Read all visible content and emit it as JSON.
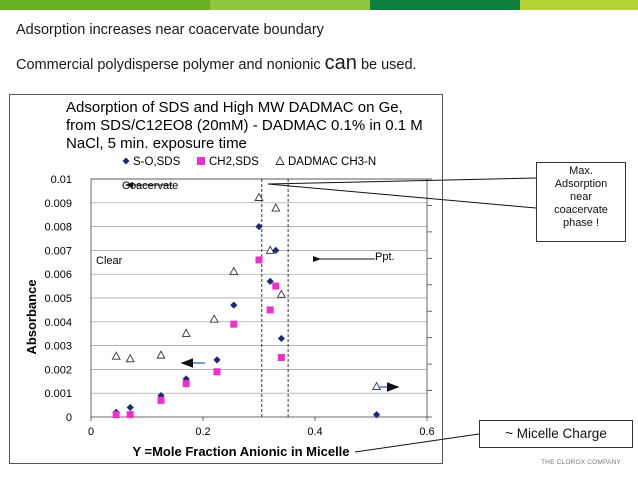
{
  "slide": {
    "headline1": "Adsorption increases near coacervate boundary",
    "headline2_pre": "Commercial polydisperse polymer and nonionic ",
    "headline2_big": "can",
    "headline2_post": " be used.",
    "footer_logo": "THE CLOROX COMPANY",
    "top_bar_colors": [
      "#6ab023",
      "#8dc63f",
      "#0f7f3f",
      "#b5d334"
    ]
  },
  "callouts": {
    "max_adsorption": [
      "Max.",
      "Adsorption",
      "near",
      "coacervate",
      "phase !"
    ],
    "micelle_charge": "~ Micelle Charge"
  },
  "chart_data": {
    "type": "scatter",
    "title_lines": [
      "Adsorption of SDS and High MW DADMAC on Ge,",
      "from SDS/C12EO8  (20mM) - DADMAC 0.1% in 0.1 M",
      "NaCl, 5 min. exposure time"
    ],
    "xlabel": "Y =Mole Fraction Anionic in Micelle",
    "ylabel": "Absorbance",
    "xlim": [
      0,
      0.6
    ],
    "ylim": [
      0,
      0.01
    ],
    "y2lim": [
      0,
      0.00045
    ],
    "x_ticks": [
      "0",
      "0.2",
      "0.4",
      "0.6"
    ],
    "y_ticks": [
      "0",
      "0.001",
      "0.002",
      "0.003",
      "0.004",
      "0.005",
      "0.006",
      "0.007",
      "0.008",
      "0.009",
      "0.01"
    ],
    "y2_ticks": [
      "0",
      "0.00005",
      "0.0001",
      "0.00015",
      "0.0002",
      "0.00025",
      "0.0003",
      "0.00035",
      "0.0004",
      "0.00045"
    ],
    "grid": "horizontal",
    "legend_position": "top",
    "series": [
      {
        "name": "S-O,SDS",
        "marker": "diamond",
        "color": "#1f2a7a",
        "axis": "left",
        "points": [
          [
            0.045,
            0.0002
          ],
          [
            0.07,
            0.0004
          ],
          [
            0.125,
            0.0009
          ],
          [
            0.17,
            0.0016
          ],
          [
            0.225,
            0.0024
          ],
          [
            0.255,
            0.0047
          ],
          [
            0.3,
            0.008
          ],
          [
            0.32,
            0.0057
          ],
          [
            0.33,
            0.007
          ],
          [
            0.34,
            0.0033
          ],
          [
            0.51,
            0.0001
          ]
        ]
      },
      {
        "name": "CH2,SDS",
        "marker": "square",
        "color": "#ee2fcb",
        "axis": "left",
        "points": [
          [
            0.045,
            0.0001
          ],
          [
            0.07,
            0.0001
          ],
          [
            0.125,
            0.0007
          ],
          [
            0.17,
            0.0014
          ],
          [
            0.225,
            0.0019
          ],
          [
            0.255,
            0.0039
          ],
          [
            0.3,
            0.0066
          ],
          [
            0.32,
            0.0045
          ],
          [
            0.33,
            0.0055
          ],
          [
            0.34,
            0.0025
          ]
        ]
      },
      {
        "name": "DADMAC CH3-N",
        "marker": "triangle",
        "color": "#333333",
        "axis": "right",
        "points": [
          [
            0.045,
            0.000115
          ],
          [
            0.07,
            0.00011
          ],
          [
            0.125,
            0.000117
          ],
          [
            0.17,
            0.000158
          ],
          [
            0.22,
            0.000185
          ],
          [
            0.255,
            0.000275
          ],
          [
            0.3,
            0.000415
          ],
          [
            0.32,
            0.000315
          ],
          [
            0.33,
            0.000395
          ],
          [
            0.34,
            0.000232
          ],
          [
            0.51,
            5.75e-05
          ]
        ]
      }
    ],
    "vlines_x": [
      0.305,
      0.352
    ],
    "annotations": {
      "coacervate": "Coacervate",
      "clear": "Clear",
      "ppt": "Ppt."
    }
  }
}
